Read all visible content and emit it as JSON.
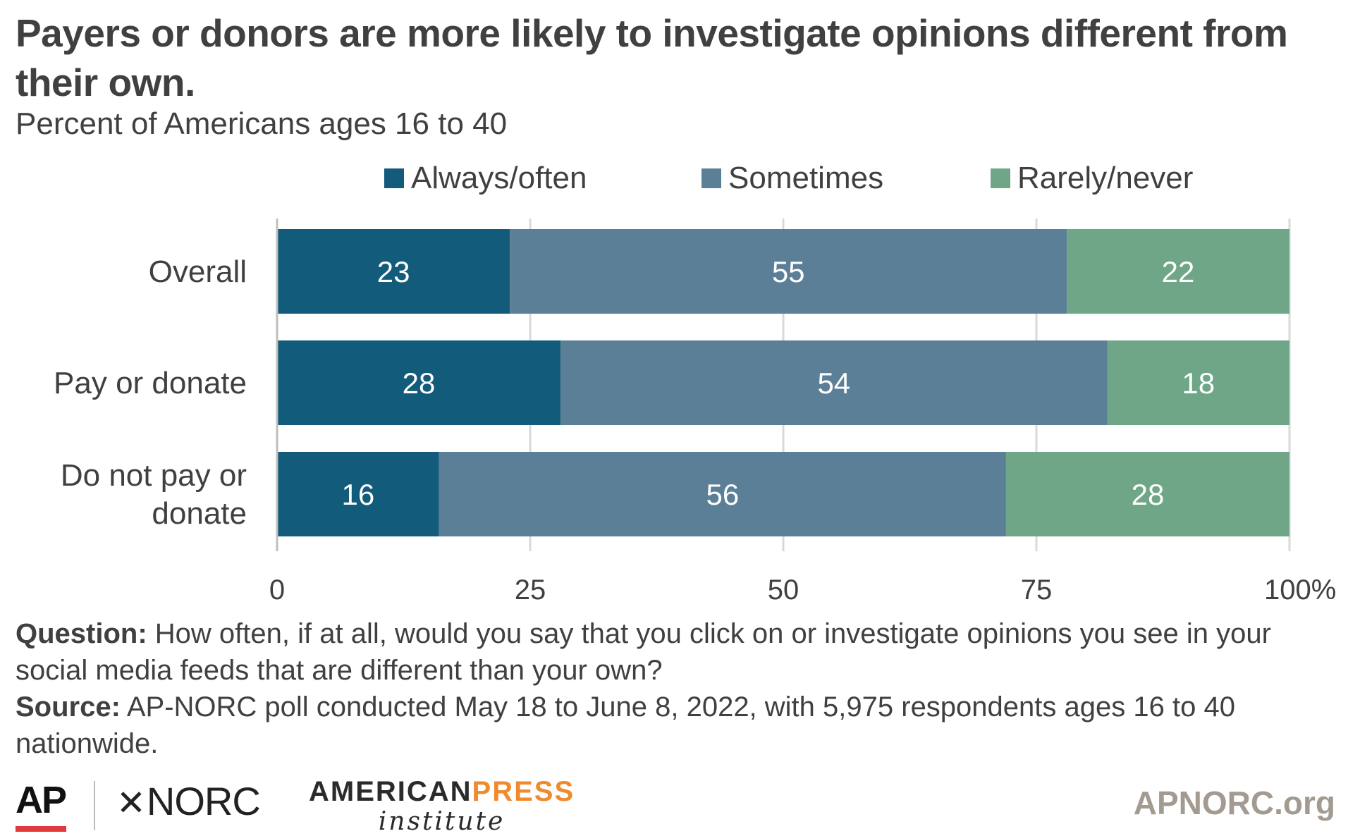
{
  "title": "Payers or donors are more likely to investigate opinions different from their own.",
  "subtitle": "Percent of Americans ages 16 to 40",
  "chart_data": {
    "type": "bar",
    "orientation": "horizontal",
    "stacked": true,
    "categories": [
      "Overall",
      "Pay or donate",
      "Do not pay or donate"
    ],
    "series": [
      {
        "name": "Always/often",
        "color": "#135b7a",
        "values": [
          23,
          28,
          16
        ]
      },
      {
        "name": "Sometimes",
        "color": "#5b7f96",
        "values": [
          55,
          54,
          56
        ]
      },
      {
        "name": "Rarely/never",
        "color": "#6fa688",
        "values": [
          22,
          18,
          28
        ]
      }
    ],
    "xlim": [
      0,
      100
    ],
    "xticks": [
      0,
      25,
      50,
      75,
      100
    ],
    "xtick_labels": [
      "0",
      "25",
      "50",
      "75",
      "100%"
    ],
    "grid": true,
    "legend_position": "top"
  },
  "footnote": {
    "question_label": "Question:",
    "question_text": "How often, if at all, would you say that you click on or investigate opinions you see in your social media feeds that are different than your own?",
    "source_label": "Source:",
    "source_text": "AP-NORC poll conducted May 18 to June 8, 2022, with 5,975 respondents ages 16 to 40 nationwide."
  },
  "logos": {
    "ap": "AP",
    "norc": "NORC",
    "api_line1_a": "AMERICAN",
    "api_line1_b": "PRESS",
    "api_line2": "institute",
    "site": "APNORC.org"
  }
}
